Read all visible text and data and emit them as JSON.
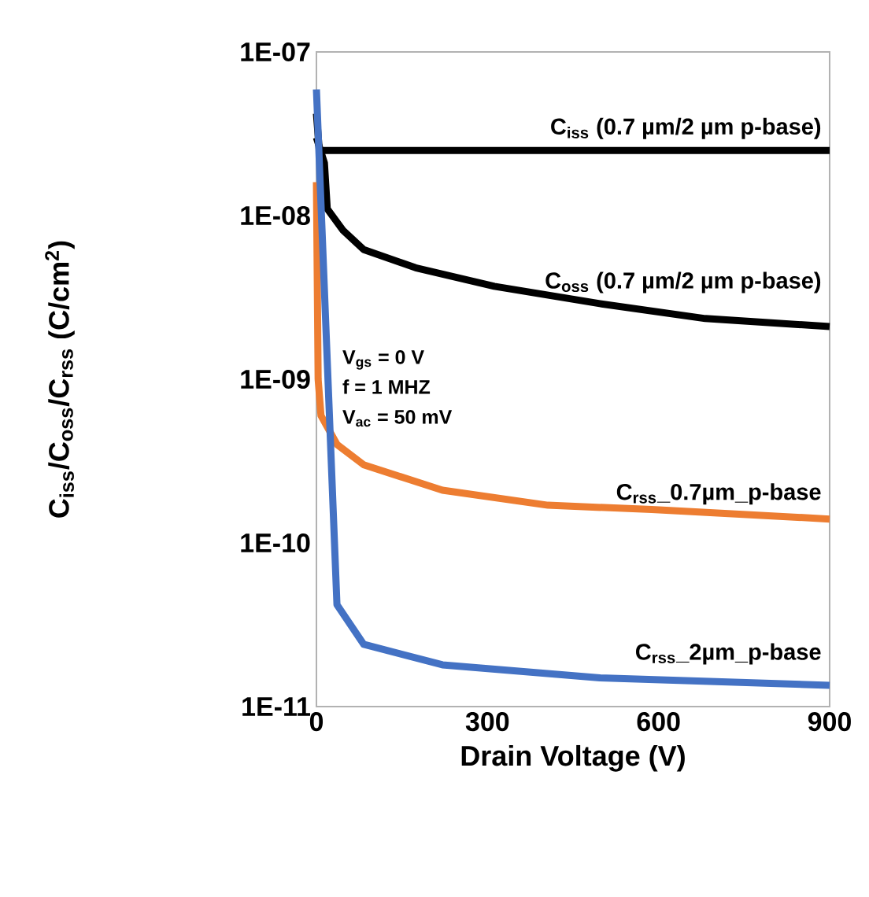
{
  "chart_data": {
    "type": "line",
    "xlabel": "Drain Voltage (V)",
    "ylabel": "C$_{iss}$/C$_{oss}$/C$_{rss}$ (C/cm$^{2}$)",
    "xlim": [
      0,
      900
    ],
    "xticks": [
      0,
      300,
      600,
      900
    ],
    "ylim": [
      1e-11,
      1e-07
    ],
    "yticks": [
      {
        "value": 1e-11,
        "label": "1E-11"
      },
      {
        "value": 1e-10,
        "label": "1E-10"
      },
      {
        "value": 1e-09,
        "label": "1E-09"
      },
      {
        "value": 1e-08,
        "label": "1E-08"
      },
      {
        "value": 1e-07,
        "label": "1E-07"
      }
    ],
    "log": "y",
    "grid": false,
    "marker": "none",
    "line_style": "solid",
    "series": [
      {
        "name": "C$_{iss}$ (0.7 µm/2 µm p-base)",
        "color": "#000000",
        "x": [
          0,
          5,
          100,
          300,
          600,
          900
        ],
        "values": [
          4.2e-08,
          2.5e-08,
          2.5e-08,
          2.5e-08,
          2.5e-08,
          2.5e-08
        ]
      },
      {
        "name": "C$_{oss}$ (0.7 µm/2 µm p-base)",
        "color": "#000000",
        "x": [
          0,
          14,
          19,
          47,
          83,
          174,
          312,
          497,
          682,
          900
        ],
        "values": [
          3e-08,
          2.1e-08,
          1.1e-08,
          8.1e-09,
          6.2e-09,
          4.8e-09,
          3.7e-09,
          2.9e-09,
          2.35e-09,
          2.1e-09
        ]
      },
      {
        "name": "C$_{rss}$_0.7µm_p-base",
        "color": "#ed7d31",
        "x": [
          0,
          3,
          8,
          36,
          83,
          221,
          406,
          588,
          900
        ],
        "values": [
          1.6e-08,
          1e-09,
          6e-10,
          4e-10,
          3e-10,
          2.1e-10,
          1.7e-10,
          1.6e-10,
          1.4e-10
        ]
      },
      {
        "name": "C$_{rss}$_2µm_p-base",
        "color": "#4472c4",
        "x": [
          0,
          36,
          83,
          221,
          497,
          900
        ],
        "values": [
          5.9e-08,
          4.2e-11,
          2.4e-11,
          1.8e-11,
          1.5e-11,
          1.35e-11
        ]
      }
    ],
    "annotations": [
      "V$_{gs}$ = 0 V",
      "f = 1 MHZ",
      "V$_{ac}$ = 50 mV"
    ]
  }
}
